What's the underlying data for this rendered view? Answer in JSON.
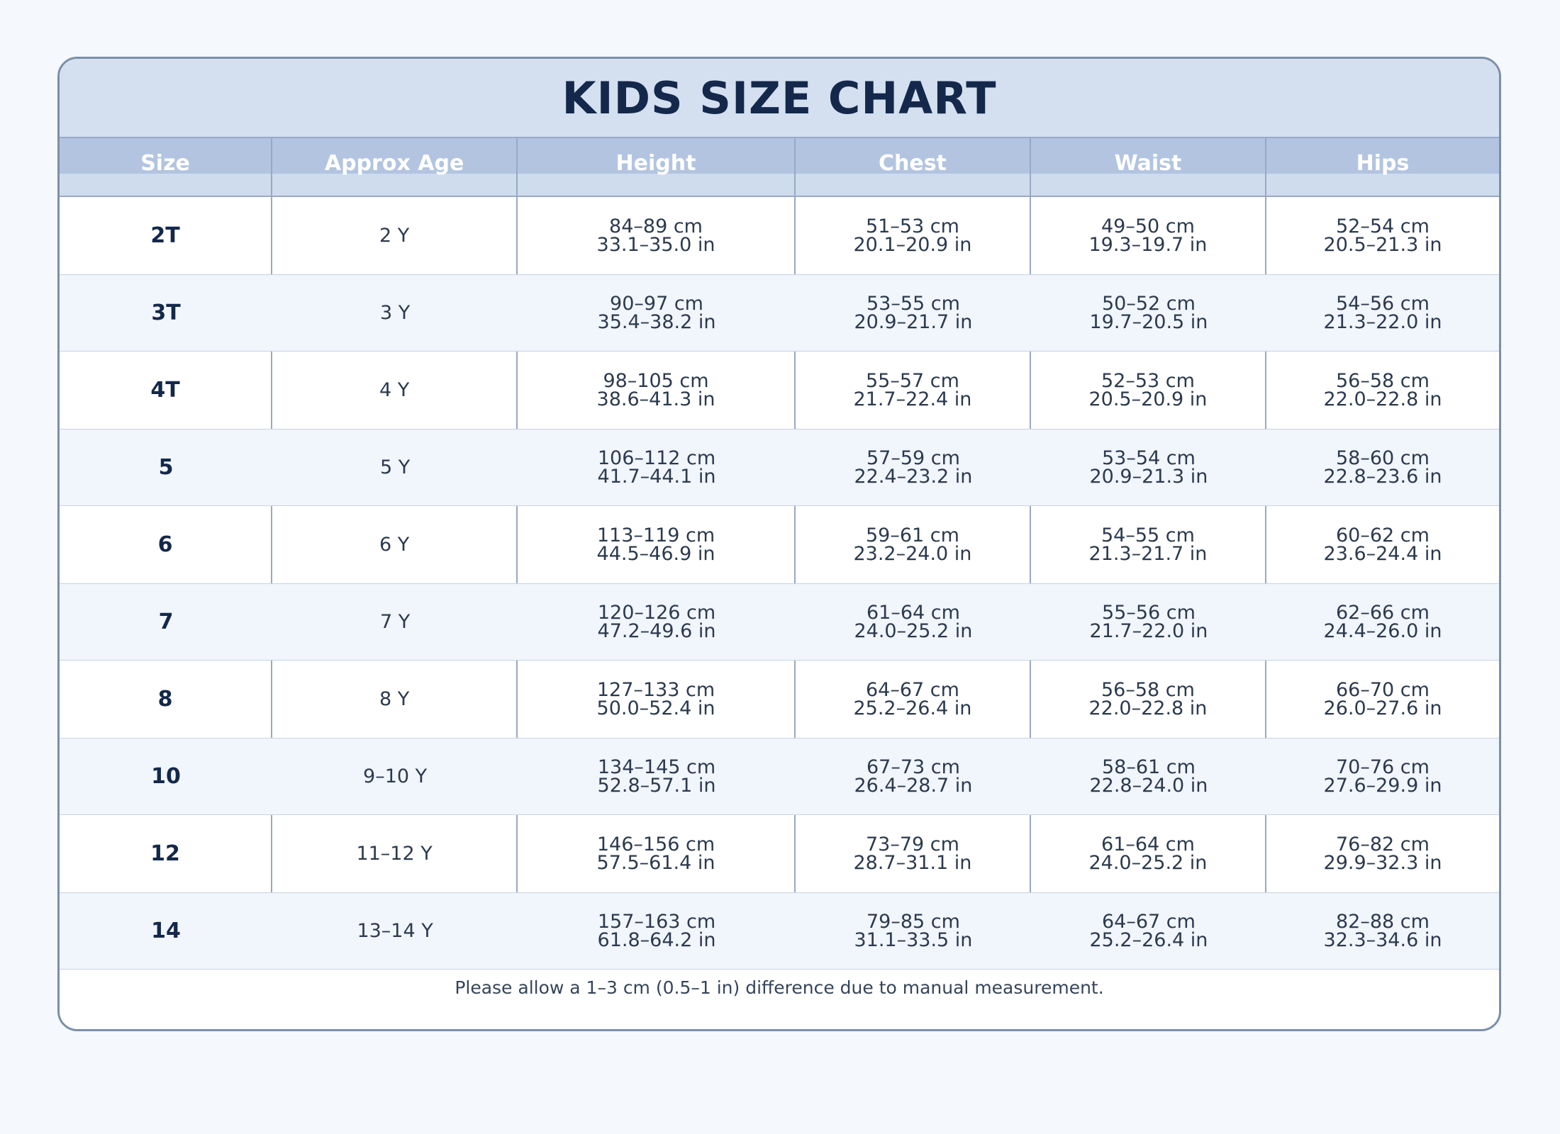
{
  "title": "KIDS SIZE CHART",
  "columns": [
    "Size",
    "Approx Age",
    "Height",
    "Chest",
    "Waist",
    "Hips"
  ],
  "rows": [
    {
      "size": "2T",
      "age": "2 Y",
      "height": {
        "cm": "84–89 cm",
        "in": "33.1–35.0 in"
      },
      "chest": {
        "cm": "51–53 cm",
        "in": "20.1–20.9 in"
      },
      "waist": {
        "cm": "49–50 cm",
        "in": "19.3–19.7 in"
      },
      "hips": {
        "cm": "52–54 cm",
        "in": "20.5–21.3 in"
      }
    },
    {
      "size": "3T",
      "age": "3 Y",
      "height": {
        "cm": "90–97 cm",
        "in": "35.4–38.2 in"
      },
      "chest": {
        "cm": "53–55 cm",
        "in": "20.9–21.7 in"
      },
      "waist": {
        "cm": "50–52 cm",
        "in": "19.7–20.5 in"
      },
      "hips": {
        "cm": "54–56 cm",
        "in": "21.3–22.0 in"
      }
    },
    {
      "size": "4T",
      "age": "4 Y",
      "height": {
        "cm": "98–105 cm",
        "in": "38.6–41.3 in"
      },
      "chest": {
        "cm": "55–57 cm",
        "in": "21.7–22.4 in"
      },
      "waist": {
        "cm": "52–53 cm",
        "in": "20.5–20.9 in"
      },
      "hips": {
        "cm": "56–58 cm",
        "in": "22.0–22.8 in"
      }
    },
    {
      "size": "5",
      "age": "5 Y",
      "height": {
        "cm": "106–112 cm",
        "in": "41.7–44.1 in"
      },
      "chest": {
        "cm": "57–59 cm",
        "in": "22.4–23.2 in"
      },
      "waist": {
        "cm": "53–54 cm",
        "in": "20.9–21.3 in"
      },
      "hips": {
        "cm": "58–60 cm",
        "in": "22.8–23.6 in"
      }
    },
    {
      "size": "6",
      "age": "6 Y",
      "height": {
        "cm": "113–119 cm",
        "in": "44.5–46.9 in"
      },
      "chest": {
        "cm": "59–61 cm",
        "in": "23.2–24.0 in"
      },
      "waist": {
        "cm": "54–55 cm",
        "in": "21.3–21.7 in"
      },
      "hips": {
        "cm": "60–62 cm",
        "in": "23.6–24.4 in"
      }
    },
    {
      "size": "7",
      "age": "7 Y",
      "height": {
        "cm": "120–126 cm",
        "in": "47.2–49.6 in"
      },
      "chest": {
        "cm": "61–64 cm",
        "in": "24.0–25.2 in"
      },
      "waist": {
        "cm": "55–56 cm",
        "in": "21.7–22.0 in"
      },
      "hips": {
        "cm": "62–66 cm",
        "in": "24.4–26.0 in"
      }
    },
    {
      "size": "8",
      "age": "8 Y",
      "height": {
        "cm": "127–133 cm",
        "in": "50.0–52.4 in"
      },
      "chest": {
        "cm": "64–67 cm",
        "in": "25.2–26.4 in"
      },
      "waist": {
        "cm": "56–58 cm",
        "in": "22.0–22.8 in"
      },
      "hips": {
        "cm": "66–70 cm",
        "in": "26.0–27.6 in"
      }
    },
    {
      "size": "10",
      "age": "9–10 Y",
      "height": {
        "cm": "134–145 cm",
        "in": "52.8–57.1 in"
      },
      "chest": {
        "cm": "67–73 cm",
        "in": "26.4–28.7 in"
      },
      "waist": {
        "cm": "58–61 cm",
        "in": "22.8–24.0 in"
      },
      "hips": {
        "cm": "70–76 cm",
        "in": "27.6–29.9 in"
      }
    },
    {
      "size": "12",
      "age": "11–12 Y",
      "height": {
        "cm": "146–156 cm",
        "in": "57.5–61.4 in"
      },
      "chest": {
        "cm": "73–79 cm",
        "in": "28.7–31.1 in"
      },
      "waist": {
        "cm": "61–64 cm",
        "in": "24.0–25.2 in"
      },
      "hips": {
        "cm": "76–82 cm",
        "in": "29.9–32.3 in"
      }
    },
    {
      "size": "14",
      "age": "13–14 Y",
      "height": {
        "cm": "157–163 cm",
        "in": "61.8–64.2 in"
      },
      "chest": {
        "cm": "79–85 cm",
        "in": "31.1–33.5 in"
      },
      "waist": {
        "cm": "64–67 cm",
        "in": "25.2–26.4 in"
      },
      "hips": {
        "cm": "82–88 cm",
        "in": "32.3–34.6 in"
      }
    }
  ],
  "footer": "Please allow a 1–3 cm (0.5–1 in) difference due to manual measurement.",
  "colors": {
    "page_bg": "#f5f8fc",
    "title_band": "#d4dff0",
    "header_bg": "#b2c4e0",
    "border": "#7b8fa8",
    "title_text": "#13284a",
    "alt_row": "#f1f5fc"
  }
}
